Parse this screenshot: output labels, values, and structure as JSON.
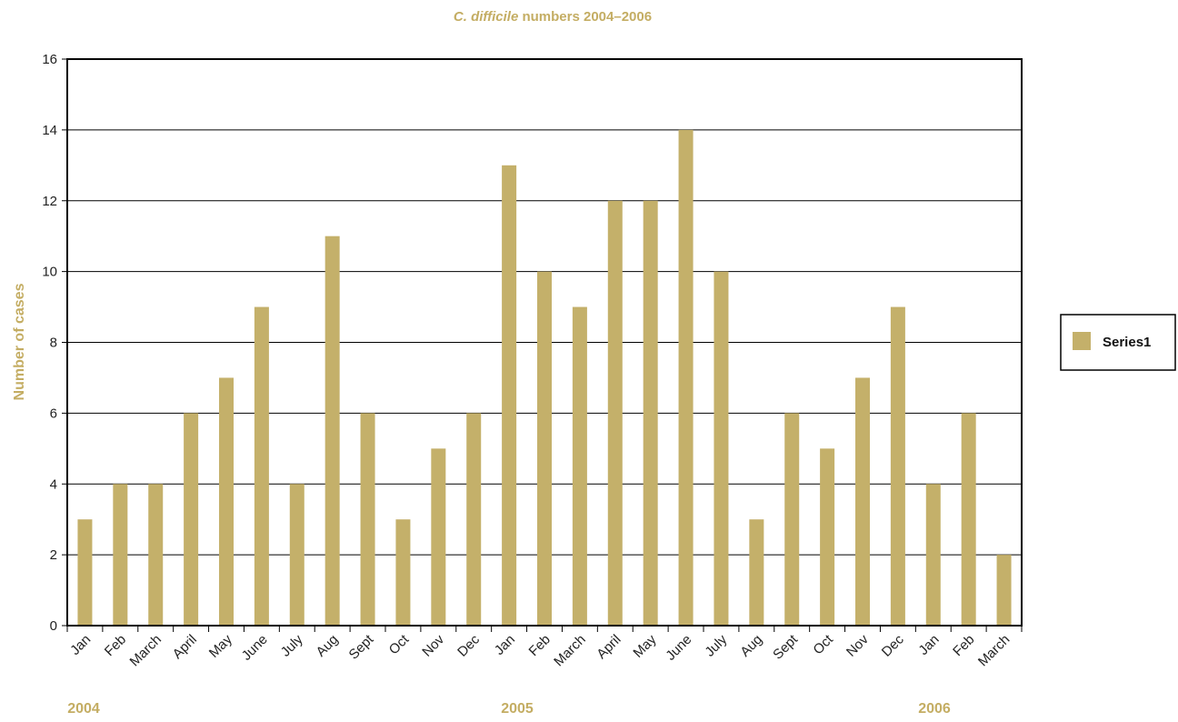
{
  "title_parts": {
    "italic": "C. difficile",
    "rest": " numbers 2004–2006"
  },
  "colors": {
    "bar": "#c4b06a",
    "accent_text": "#c4ad63",
    "grid": "#000000"
  },
  "chart_data": {
    "type": "bar",
    "title": "C. difficile numbers 2004–2006",
    "xlabel": "",
    "ylabel": "Number of cases",
    "ylim": [
      0,
      16
    ],
    "yticks": [
      0,
      2,
      4,
      6,
      8,
      10,
      12,
      14,
      16
    ],
    "grid": true,
    "legend_position": "right",
    "categories": [
      "Jan",
      "Feb",
      "March",
      "April",
      "May",
      "June",
      "July",
      "Aug",
      "Sept",
      "Oct",
      "Nov",
      "Dec",
      "Jan",
      "Feb",
      "March",
      "April",
      "May",
      "June",
      "July",
      "Aug",
      "Sept",
      "Oct",
      "Nov",
      "Dec",
      "Jan",
      "Feb",
      "March"
    ],
    "series": [
      {
        "name": "Series1",
        "values": [
          3,
          4,
          4,
          6,
          7,
          9,
          4,
          11,
          6,
          3,
          5,
          6,
          13,
          10,
          9,
          12,
          12,
          14,
          10,
          3,
          6,
          5,
          7,
          9,
          4,
          6,
          2
        ]
      }
    ],
    "year_labels": [
      {
        "label": "2004",
        "start_index": 0
      },
      {
        "label": "2005",
        "start_index": 12
      },
      {
        "label": "2006",
        "start_index": 24
      }
    ]
  }
}
